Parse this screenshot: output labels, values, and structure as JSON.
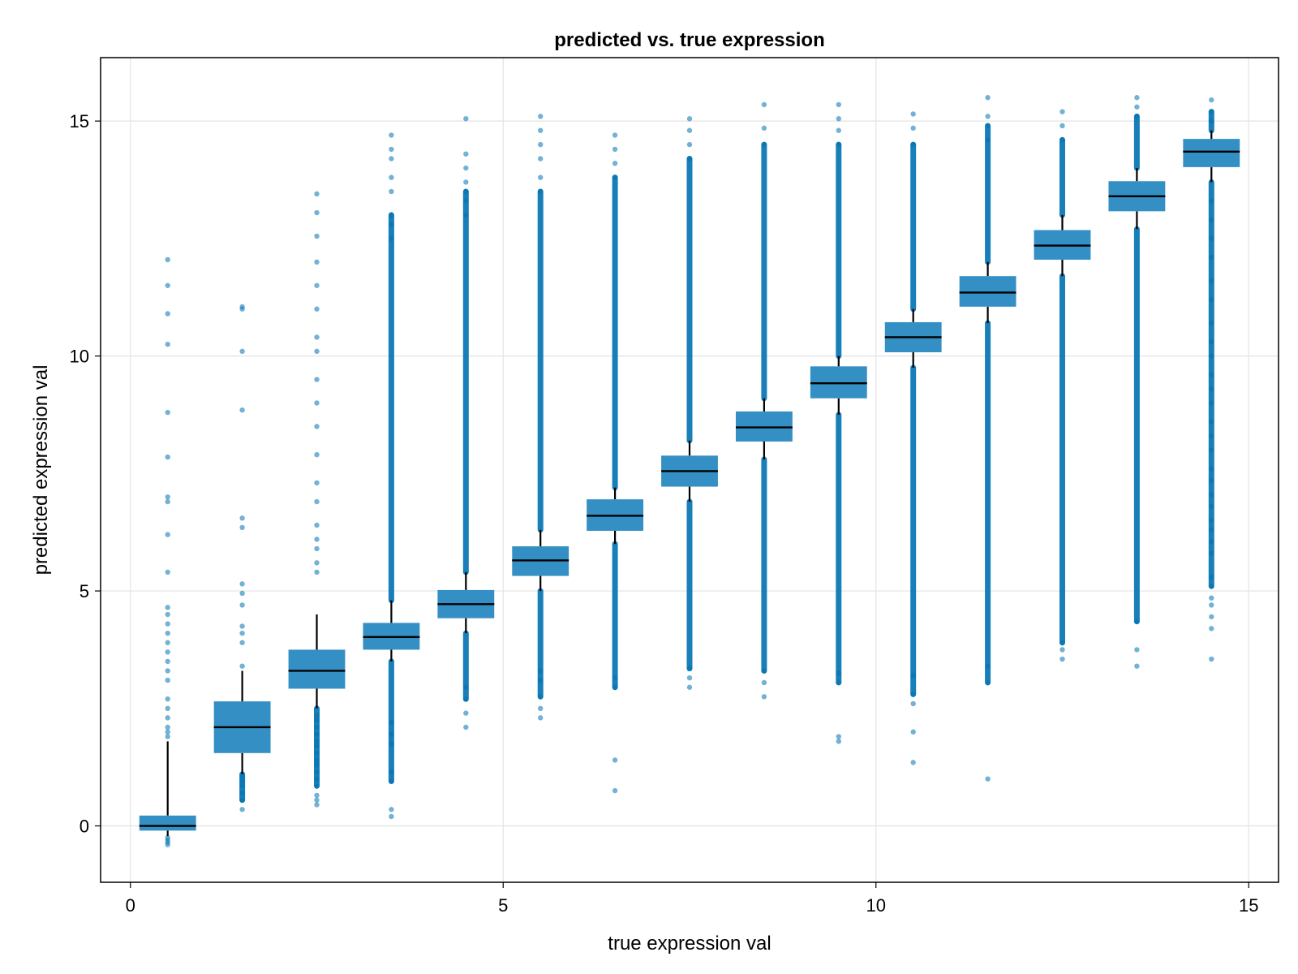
{
  "chart_data": {
    "type": "box",
    "title": "predicted vs. true expression",
    "xlabel": "true expression val",
    "ylabel": "predicted expression val",
    "xlim": [
      -0.4,
      15.4
    ],
    "ylim": [
      -1.2,
      16.35
    ],
    "xticks": [
      0,
      5,
      10,
      15
    ],
    "yticks": [
      0,
      5,
      10,
      15
    ],
    "grid": true,
    "color": "#0072b2",
    "median_color": "#000000",
    "boxes": [
      {
        "x": 0.5,
        "q1": -0.1,
        "median": 0.0,
        "q3": 0.22,
        "whisker_low": -0.22,
        "whisker_high": 1.8,
        "outliers_low": [
          -0.25,
          -0.3,
          -0.35,
          -0.4
        ],
        "outliers_high": [
          1.9,
          2.0,
          2.1,
          2.3,
          2.5,
          2.7,
          3.1,
          3.3,
          3.5,
          3.7,
          3.9,
          4.1,
          4.3,
          4.5,
          4.65,
          5.4,
          6.2,
          6.9,
          7.0,
          7.85,
          8.8,
          10.25,
          10.9,
          11.5,
          12.05
        ]
      },
      {
        "x": 1.5,
        "q1": 1.55,
        "median": 2.1,
        "q3": 2.65,
        "whisker_low": 1.1,
        "whisker_high": 3.3,
        "outliers_low": [
          0.35,
          0.55,
          0.7,
          0.85,
          0.95,
          1.05
        ],
        "outliers_high": [
          3.4,
          3.9,
          4.1,
          4.25,
          4.7,
          4.95,
          5.15,
          6.35,
          6.55,
          8.85,
          10.1,
          11.0,
          11.05
        ]
      },
      {
        "x": 2.5,
        "q1": 2.92,
        "median": 3.3,
        "q3": 3.75,
        "whisker_low": 2.5,
        "whisker_high": 4.5,
        "outliers_low": [
          0.45,
          0.55,
          0.65,
          0.85,
          1.0,
          1.15,
          1.3,
          1.4,
          1.55,
          1.7,
          1.8,
          1.95,
          2.1,
          2.25,
          2.35
        ],
        "outliers_high": [
          5.4,
          5.6,
          5.9,
          6.1,
          6.4,
          6.9,
          7.3,
          7.9,
          8.5,
          9.0,
          9.5,
          10.1,
          10.4,
          11.0,
          11.5,
          12.0,
          12.55,
          13.05,
          13.45
        ]
      },
      {
        "x": 3.5,
        "q1": 3.75,
        "median": 4.02,
        "q3": 4.32,
        "whisker_low": 3.5,
        "whisker_high": 4.8,
        "outliers_low": [
          0.2,
          0.35,
          0.95,
          1.15,
          1.75,
          1.95,
          2.2
        ],
        "outliers_high": [
          12.5,
          12.8,
          13.0,
          13.5,
          13.8,
          14.2,
          14.4,
          14.7
        ]
      },
      {
        "x": 4.5,
        "q1": 4.42,
        "median": 4.72,
        "q3": 5.02,
        "whisker_low": 4.1,
        "whisker_high": 5.4,
        "outliers_low": [
          2.1,
          2.4,
          2.7,
          2.95
        ],
        "outliers_high": [
          13.0,
          13.3,
          13.5,
          13.7,
          14.0,
          14.3,
          15.05
        ]
      },
      {
        "x": 5.5,
        "q1": 5.32,
        "median": 5.65,
        "q3": 5.95,
        "whisker_low": 5.0,
        "whisker_high": 6.3,
        "outliers_low": [
          2.3,
          2.5,
          2.75,
          3.1,
          3.3
        ],
        "outliers_high": [
          13.5,
          13.8,
          14.2,
          14.5,
          14.8,
          15.1
        ]
      },
      {
        "x": 6.5,
        "q1": 6.28,
        "median": 6.6,
        "q3": 6.95,
        "whisker_low": 6.0,
        "whisker_high": 7.2,
        "outliers_low": [
          0.75,
          1.4,
          2.95,
          3.15
        ],
        "outliers_high": [
          13.8,
          14.1,
          14.4,
          14.7
        ]
      },
      {
        "x": 7.5,
        "q1": 7.22,
        "median": 7.55,
        "q3": 7.88,
        "whisker_low": 6.9,
        "whisker_high": 8.2,
        "outliers_low": [
          2.95,
          3.15,
          3.35
        ],
        "outliers_high": [
          14.2,
          14.5,
          14.8,
          15.05
        ]
      },
      {
        "x": 8.5,
        "q1": 8.18,
        "median": 8.48,
        "q3": 8.82,
        "whisker_low": 7.8,
        "whisker_high": 9.1,
        "outliers_low": [
          2.75,
          3.05,
          3.3
        ],
        "outliers_high": [
          14.5,
          14.85,
          15.35
        ]
      },
      {
        "x": 9.5,
        "q1": 9.1,
        "median": 9.42,
        "q3": 9.78,
        "whisker_low": 8.75,
        "whisker_high": 10.0,
        "outliers_low": [
          1.8,
          1.9,
          3.05,
          3.25
        ],
        "outliers_high": [
          14.5,
          14.8,
          15.05,
          15.35
        ]
      },
      {
        "x": 10.5,
        "q1": 10.08,
        "median": 10.4,
        "q3": 10.72,
        "whisker_low": 9.75,
        "whisker_high": 11.0,
        "outliers_low": [
          1.35,
          2.0,
          2.6,
          2.8,
          3.2
        ],
        "outliers_high": [
          14.5,
          14.85,
          15.15
        ]
      },
      {
        "x": 11.5,
        "q1": 11.05,
        "median": 11.35,
        "q3": 11.7,
        "whisker_low": 10.7,
        "whisker_high": 12.0,
        "outliers_low": [
          1.0,
          3.05,
          3.4
        ],
        "outliers_high": [
          14.6,
          14.9,
          15.1,
          15.5
        ]
      },
      {
        "x": 12.5,
        "q1": 12.05,
        "median": 12.35,
        "q3": 12.68,
        "whisker_low": 11.7,
        "whisker_high": 13.0,
        "outliers_low": [
          3.55,
          3.75,
          3.9
        ],
        "outliers_high": [
          14.6,
          14.9,
          15.2
        ]
      },
      {
        "x": 13.5,
        "q1": 13.08,
        "median": 13.4,
        "q3": 13.72,
        "whisker_low": 12.7,
        "whisker_high": 14.0,
        "outliers_low": [
          3.4,
          3.75,
          4.35
        ],
        "outliers_high": [
          15.1,
          15.3,
          15.5
        ]
      },
      {
        "x": 14.5,
        "q1": 14.02,
        "median": 14.35,
        "q3": 14.62,
        "whisker_low": 13.7,
        "whisker_high": 14.8,
        "outliers_low": [
          3.55,
          4.2,
          4.45,
          4.7,
          4.85,
          5.1,
          5.3,
          5.8,
          6.05,
          6.3,
          6.5,
          6.8,
          7.05,
          7.35,
          7.6,
          8.0,
          8.3,
          8.6,
          9.0,
          9.3,
          9.6,
          10.0,
          10.3,
          10.7,
          11.2,
          11.6,
          12.1,
          12.5,
          12.9,
          13.3
        ],
        "outliers_high": [
          15.0,
          15.2,
          15.45
        ]
      }
    ]
  }
}
